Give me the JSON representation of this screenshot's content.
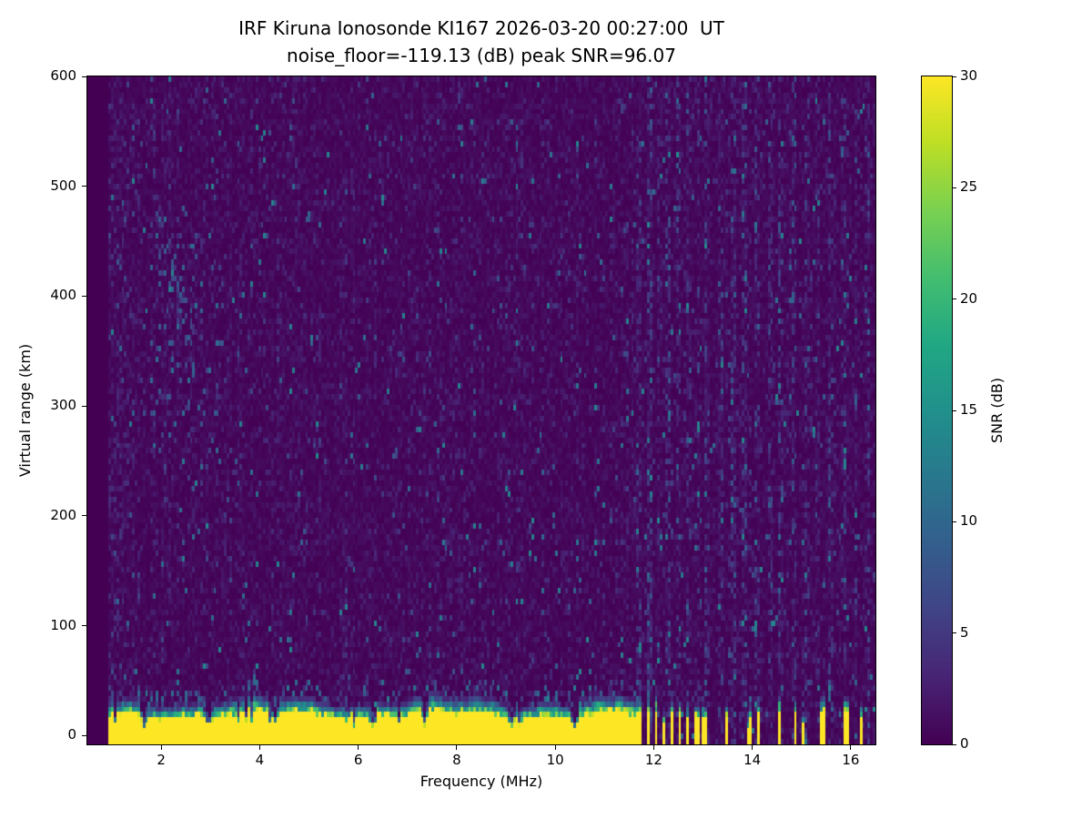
{
  "title": {
    "line1": "IRF Kiruna Ionosonde KI167 2026-03-20 00:27:00  UT",
    "line2": "noise_floor=-119.13 (dB) peak SNR=96.07"
  },
  "chart_data": {
    "type": "heatmap",
    "title": "IRF Kiruna Ionosonde KI167 2026-03-20 00:27:00 UT",
    "subtitle": "noise_floor=-119.13 (dB) peak SNR=96.07",
    "xlabel": "Frequency (MHz)",
    "ylabel": "Virtual range (km)",
    "colorbar_label": "SNR (dB)",
    "x_range": [
      0.5,
      16.5
    ],
    "y_range": [
      -8,
      600
    ],
    "color_range": [
      0,
      30
    ],
    "x_ticks": [
      2,
      4,
      6,
      8,
      10,
      12,
      14,
      16
    ],
    "y_ticks": [
      0,
      100,
      200,
      300,
      400,
      500,
      600
    ],
    "colorbar_ticks": [
      0,
      5,
      10,
      15,
      20,
      25,
      30
    ],
    "colormap": "viridis",
    "colormap_stops": [
      [
        0.0,
        "#440154"
      ],
      [
        0.1,
        "#482475"
      ],
      [
        0.2,
        "#414487"
      ],
      [
        0.3,
        "#345f8d"
      ],
      [
        0.4,
        "#29788e"
      ],
      [
        0.5,
        "#21918c"
      ],
      [
        0.6,
        "#22a884"
      ],
      [
        0.7,
        "#44be70"
      ],
      [
        0.8,
        "#7ad151"
      ],
      [
        0.9,
        "#bddf26"
      ],
      [
        1.0,
        "#fde725"
      ]
    ],
    "noise_floor_db": -119.13,
    "peak_snr_db": 96.07,
    "grid": {
      "cols": 300,
      "rows": 124
    },
    "seed": 167,
    "background_noise": {
      "mean_db": 0.85,
      "speckle_prob": 0.02,
      "speckle_max_db": 11
    },
    "ground_echo": {
      "freq_start_mhz": 0.95,
      "continuous_until_mhz": 11.62,
      "value_db": 30,
      "base_top_km": 31,
      "solid_fraction": 0.55,
      "notch_freqs_mhz": [
        1.65,
        2.95,
        4.3,
        6.3,
        7.35,
        9.1,
        10.4
      ]
    },
    "rf_stripes_mhz": [
      [
        11.72,
        0.1
      ],
      [
        11.88,
        0.09
      ],
      [
        12.04,
        0.09
      ],
      [
        12.2,
        0.09
      ],
      [
        12.37,
        0.08
      ],
      [
        12.53,
        0.09
      ],
      [
        12.7,
        0.08
      ],
      [
        12.87,
        0.09
      ],
      [
        13.03,
        0.08
      ],
      [
        13.49,
        0.07
      ],
      [
        13.95,
        0.1
      ],
      [
        14.12,
        0.06
      ],
      [
        14.55,
        0.07
      ],
      [
        14.88,
        0.09
      ],
      [
        15.05,
        0.06
      ],
      [
        15.44,
        0.08
      ],
      [
        15.9,
        0.09
      ],
      [
        16.2,
        0.07
      ]
    ],
    "interference_bands_mhz": [
      11.7,
      11.9,
      12.1,
      12.3,
      12.5,
      12.7,
      12.9,
      13.1,
      13.35,
      13.6,
      13.85,
      14.1,
      14.35,
      14.6,
      14.85,
      15.1,
      15.35,
      15.6,
      15.85,
      16.1,
      16.35
    ],
    "echo_cluster": {
      "freq_range_mhz": [
        1.8,
        3.2
      ],
      "range_km": [
        240,
        500
      ]
    },
    "diagonal_trace": {
      "freq_range_mhz": [
        1.9,
        2.75
      ],
      "range_start_km": 470,
      "slope_km_per_mhz": -160
    }
  }
}
